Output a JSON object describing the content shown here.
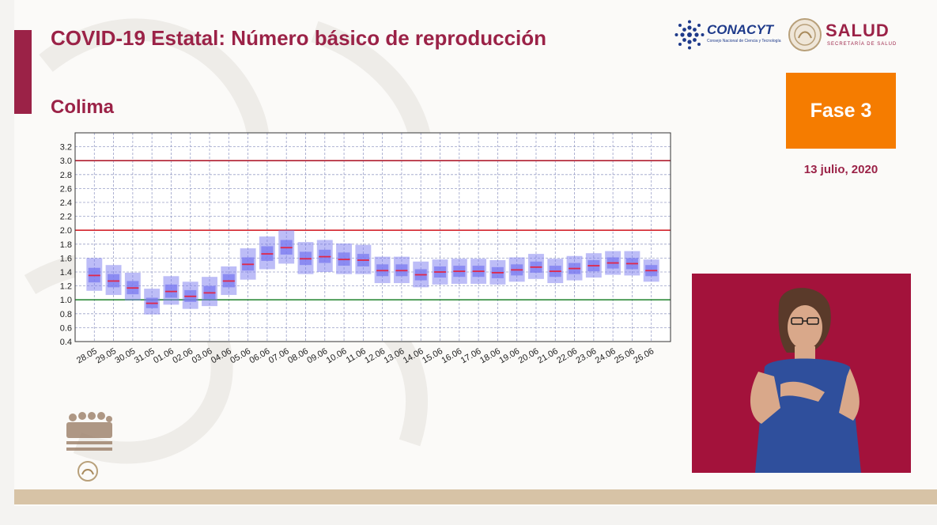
{
  "header": {
    "title": "COVID-19 Estatal: Número básico de reproducción",
    "subtitle": "Colima"
  },
  "logos": {
    "conacyt": "CONACYT",
    "conacyt_sub": "Consejo Nacional de Ciencia y Tecnología",
    "salud": "SALUD",
    "salud_sub": "SECRETARÍA DE SALUD"
  },
  "phase": {
    "label": "Fase 3",
    "color": "#f57c00"
  },
  "date": "13 julio, 2020",
  "colors": {
    "brand": "#9b2247",
    "box": "#7b7bf0",
    "median": "#e0284a"
  },
  "chart_data": {
    "type": "box",
    "categories": [
      "28.05",
      "29.05",
      "30.05",
      "31.05",
      "01.06",
      "02.06",
      "03.06",
      "04.06",
      "05.06",
      "06.06",
      "07.06",
      "08.06",
      "09.06",
      "10.06",
      "11.06",
      "12.06",
      "13.06",
      "14.06",
      "15.06",
      "16.06",
      "17.06",
      "18.06",
      "19.06",
      "20.06",
      "21.06",
      "22.06",
      "23.06",
      "24.06",
      "25.06",
      "26.06"
    ],
    "median": [
      1.35,
      1.27,
      1.17,
      0.95,
      1.12,
      1.05,
      1.1,
      1.27,
      1.51,
      1.66,
      1.75,
      1.59,
      1.62,
      1.58,
      1.57,
      1.42,
      1.42,
      1.36,
      1.4,
      1.41,
      1.41,
      1.39,
      1.43,
      1.47,
      1.41,
      1.45,
      1.49,
      1.53,
      1.52,
      1.42
    ],
    "q1": [
      1.25,
      1.18,
      1.08,
      0.88,
      1.03,
      0.97,
      1.01,
      1.18,
      1.42,
      1.56,
      1.65,
      1.5,
      1.53,
      1.49,
      1.48,
      1.34,
      1.34,
      1.28,
      1.32,
      1.33,
      1.33,
      1.31,
      1.35,
      1.39,
      1.33,
      1.37,
      1.41,
      1.45,
      1.44,
      1.34
    ],
    "q3": [
      1.46,
      1.37,
      1.27,
      1.03,
      1.22,
      1.14,
      1.2,
      1.37,
      1.61,
      1.77,
      1.86,
      1.69,
      1.72,
      1.68,
      1.66,
      1.51,
      1.51,
      1.44,
      1.48,
      1.49,
      1.49,
      1.47,
      1.51,
      1.55,
      1.49,
      1.53,
      1.57,
      1.61,
      1.6,
      1.5
    ],
    "low": [
      1.13,
      1.07,
      0.99,
      0.79,
      0.93,
      0.87,
      0.91,
      1.07,
      1.29,
      1.44,
      1.52,
      1.37,
      1.4,
      1.37,
      1.37,
      1.24,
      1.24,
      1.18,
      1.22,
      1.23,
      1.23,
      1.22,
      1.26,
      1.3,
      1.24,
      1.28,
      1.32,
      1.36,
      1.35,
      1.26
    ],
    "high": [
      1.6,
      1.5,
      1.39,
      1.16,
      1.34,
      1.26,
      1.33,
      1.48,
      1.74,
      1.91,
      2.0,
      1.83,
      1.86,
      1.81,
      1.79,
      1.62,
      1.62,
      1.55,
      1.58,
      1.59,
      1.59,
      1.57,
      1.61,
      1.66,
      1.59,
      1.63,
      1.67,
      1.7,
      1.7,
      1.58
    ],
    "hlines": [
      {
        "y": 3.0,
        "color": "#b01c2e"
      },
      {
        "y": 2.0,
        "color": "#d4242c"
      },
      {
        "y": 1.0,
        "color": "#2e8b3a"
      }
    ],
    "ylim": [
      0.4,
      3.4
    ],
    "yticks": [
      0.4,
      0.6,
      0.8,
      1.0,
      1.2,
      1.4,
      1.6,
      1.8,
      2.0,
      2.2,
      2.4,
      2.6,
      2.8,
      3.0,
      3.2
    ],
    "grid": true
  }
}
